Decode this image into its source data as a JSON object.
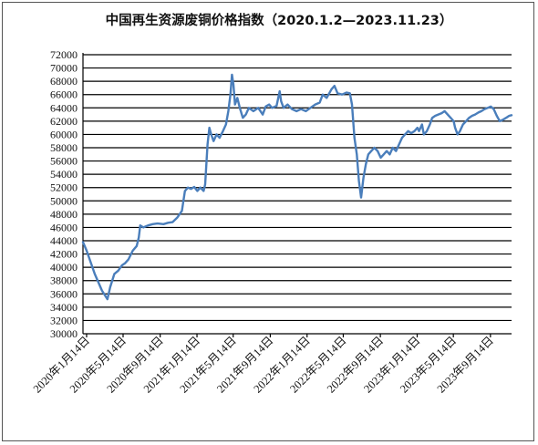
{
  "chart_data": {
    "type": "line",
    "title": "中国再生资源废铜价格指数（2020.1.2—2023.11.23）",
    "xlabel": "",
    "ylabel": "",
    "ylim": [
      30000,
      72000
    ],
    "yticks": [
      30000,
      32000,
      34000,
      36000,
      38000,
      40000,
      42000,
      44000,
      46000,
      48000,
      50000,
      52000,
      54000,
      56000,
      58000,
      60000,
      62000,
      64000,
      66000,
      68000,
      70000,
      72000
    ],
    "xlim": [
      "2020-01-02",
      "2023-11-23"
    ],
    "grid": true,
    "legend": "none",
    "colors": {
      "series": "#4a7ebb"
    },
    "xtick_labels": [
      {
        "date": "2020-01-14",
        "label": "2020年1月14日"
      },
      {
        "date": "2020-05-14",
        "label": "2020年5月14日"
      },
      {
        "date": "2020-09-14",
        "label": "2020年9月14日"
      },
      {
        "date": "2021-01-14",
        "label": "2021年1月14日"
      },
      {
        "date": "2021-05-14",
        "label": "2021年5月14日"
      },
      {
        "date": "2021-09-14",
        "label": "2021年9月14日"
      },
      {
        "date": "2022-01-14",
        "label": "2022年1月14日"
      },
      {
        "date": "2022-05-14",
        "label": "2022年5月14日"
      },
      {
        "date": "2022-09-14",
        "label": "2022年9月14日"
      },
      {
        "date": "2023-01-14",
        "label": "2023年1月14日"
      },
      {
        "date": "2023-05-14",
        "label": "2023年5月14日"
      },
      {
        "date": "2023-09-14",
        "label": "2023年9月14日"
      }
    ],
    "series": [
      {
        "points": [
          [
            "2020-01-02",
            43800
          ],
          [
            "2020-01-14",
            42500
          ],
          [
            "2020-02-10",
            39000
          ],
          [
            "2020-03-05",
            36500
          ],
          [
            "2020-03-23",
            35200
          ],
          [
            "2020-04-01",
            37000
          ],
          [
            "2020-04-15",
            39000
          ],
          [
            "2020-04-28",
            39500
          ],
          [
            "2020-05-10",
            40300
          ],
          [
            "2020-05-20",
            40600
          ],
          [
            "2020-06-01",
            41200
          ],
          [
            "2020-06-15",
            42500
          ],
          [
            "2020-06-28",
            43200
          ],
          [
            "2020-07-05",
            44500
          ],
          [
            "2020-07-10",
            46300
          ],
          [
            "2020-07-20",
            46000
          ],
          [
            "2020-08-05",
            46300
          ],
          [
            "2020-08-20",
            46500
          ],
          [
            "2020-09-05",
            46600
          ],
          [
            "2020-09-25",
            46500
          ],
          [
            "2020-10-10",
            46700
          ],
          [
            "2020-10-25",
            46800
          ],
          [
            "2020-11-10",
            47500
          ],
          [
            "2020-11-25",
            48500
          ],
          [
            "2020-12-05",
            51500
          ],
          [
            "2020-12-15",
            52000
          ],
          [
            "2020-12-25",
            51800
          ],
          [
            "2021-01-05",
            52100
          ],
          [
            "2021-01-15",
            51500
          ],
          [
            "2021-01-25",
            52000
          ],
          [
            "2021-02-05",
            51500
          ],
          [
            "2021-02-10",
            52500
          ],
          [
            "2021-02-18",
            58500
          ],
          [
            "2021-02-24",
            61000
          ],
          [
            "2021-03-02",
            60000
          ],
          [
            "2021-03-10",
            59000
          ],
          [
            "2021-03-20",
            60000
          ],
          [
            "2021-03-30",
            59500
          ],
          [
            "2021-04-10",
            60500
          ],
          [
            "2021-04-20",
            61500
          ],
          [
            "2021-04-28",
            63500
          ],
          [
            "2021-05-05",
            66000
          ],
          [
            "2021-05-10",
            69000
          ],
          [
            "2021-05-15",
            67500
          ],
          [
            "2021-05-20",
            64500
          ],
          [
            "2021-05-28",
            65500
          ],
          [
            "2021-06-05",
            64000
          ],
          [
            "2021-06-15",
            62500
          ],
          [
            "2021-06-25",
            63000
          ],
          [
            "2021-07-05",
            64000
          ],
          [
            "2021-07-20",
            63500
          ],
          [
            "2021-08-05",
            64000
          ],
          [
            "2021-08-20",
            63000
          ],
          [
            "2021-08-30",
            64200
          ],
          [
            "2021-09-10",
            64500
          ],
          [
            "2021-09-20",
            64000
          ],
          [
            "2021-10-05",
            64300
          ],
          [
            "2021-10-15",
            66500
          ],
          [
            "2021-10-20",
            65000
          ],
          [
            "2021-10-28",
            64000
          ],
          [
            "2021-11-10",
            64500
          ],
          [
            "2021-11-25",
            63800
          ],
          [
            "2021-12-10",
            63500
          ],
          [
            "2021-12-25",
            63800
          ],
          [
            "2022-01-10",
            63500
          ],
          [
            "2022-01-25",
            64000
          ],
          [
            "2022-02-10",
            64500
          ],
          [
            "2022-02-25",
            64800
          ],
          [
            "2022-03-07",
            66000
          ],
          [
            "2022-03-20",
            65500
          ],
          [
            "2022-04-05",
            66800
          ],
          [
            "2022-04-15",
            67300
          ],
          [
            "2022-04-25",
            66200
          ],
          [
            "2022-05-10",
            66000
          ],
          [
            "2022-05-25",
            66300
          ],
          [
            "2022-06-05",
            66200
          ],
          [
            "2022-06-12",
            64500
          ],
          [
            "2022-06-20",
            59500
          ],
          [
            "2022-06-28",
            57000
          ],
          [
            "2022-07-05",
            53000
          ],
          [
            "2022-07-12",
            50500
          ],
          [
            "2022-07-20",
            53500
          ],
          [
            "2022-07-28",
            55500
          ],
          [
            "2022-08-05",
            57000
          ],
          [
            "2022-08-15",
            57500
          ],
          [
            "2022-08-25",
            58000
          ],
          [
            "2022-09-05",
            57500
          ],
          [
            "2022-09-15",
            56500
          ],
          [
            "2022-09-25",
            57000
          ],
          [
            "2022-10-05",
            57500
          ],
          [
            "2022-10-15",
            57000
          ],
          [
            "2022-10-25",
            58000
          ],
          [
            "2022-11-05",
            57500
          ],
          [
            "2022-11-15",
            58500
          ],
          [
            "2022-11-25",
            59500
          ],
          [
            "2022-12-05",
            60000
          ],
          [
            "2022-12-15",
            60500
          ],
          [
            "2022-12-25",
            60200
          ],
          [
            "2023-01-05",
            60500
          ],
          [
            "2023-01-15",
            61000
          ],
          [
            "2023-01-20",
            60500
          ],
          [
            "2023-01-30",
            61500
          ],
          [
            "2023-02-05",
            60000
          ],
          [
            "2023-02-15",
            60500
          ],
          [
            "2023-02-25",
            61500
          ],
          [
            "2023-03-05",
            62500
          ],
          [
            "2023-03-15",
            62800
          ],
          [
            "2023-03-25",
            63000
          ],
          [
            "2023-04-05",
            63200
          ],
          [
            "2023-04-15",
            63500
          ],
          [
            "2023-04-25",
            63000
          ],
          [
            "2023-05-05",
            62500
          ],
          [
            "2023-05-15",
            62000
          ],
          [
            "2023-05-20",
            61000
          ],
          [
            "2023-05-28",
            60000
          ],
          [
            "2023-06-05",
            60500
          ],
          [
            "2023-06-15",
            61500
          ],
          [
            "2023-06-25",
            62000
          ],
          [
            "2023-07-05",
            62500
          ],
          [
            "2023-07-15",
            62800
          ],
          [
            "2023-07-25",
            63000
          ],
          [
            "2023-08-05",
            63300
          ],
          [
            "2023-08-15",
            63500
          ],
          [
            "2023-08-25",
            63800
          ],
          [
            "2023-09-05",
            64000
          ],
          [
            "2023-09-15",
            64200
          ],
          [
            "2023-09-25",
            63800
          ],
          [
            "2023-10-05",
            62800
          ],
          [
            "2023-10-15",
            62000
          ],
          [
            "2023-10-25",
            62200
          ],
          [
            "2023-11-05",
            62500
          ],
          [
            "2023-11-15",
            62800
          ],
          [
            "2023-11-23",
            62900
          ]
        ]
      }
    ]
  }
}
